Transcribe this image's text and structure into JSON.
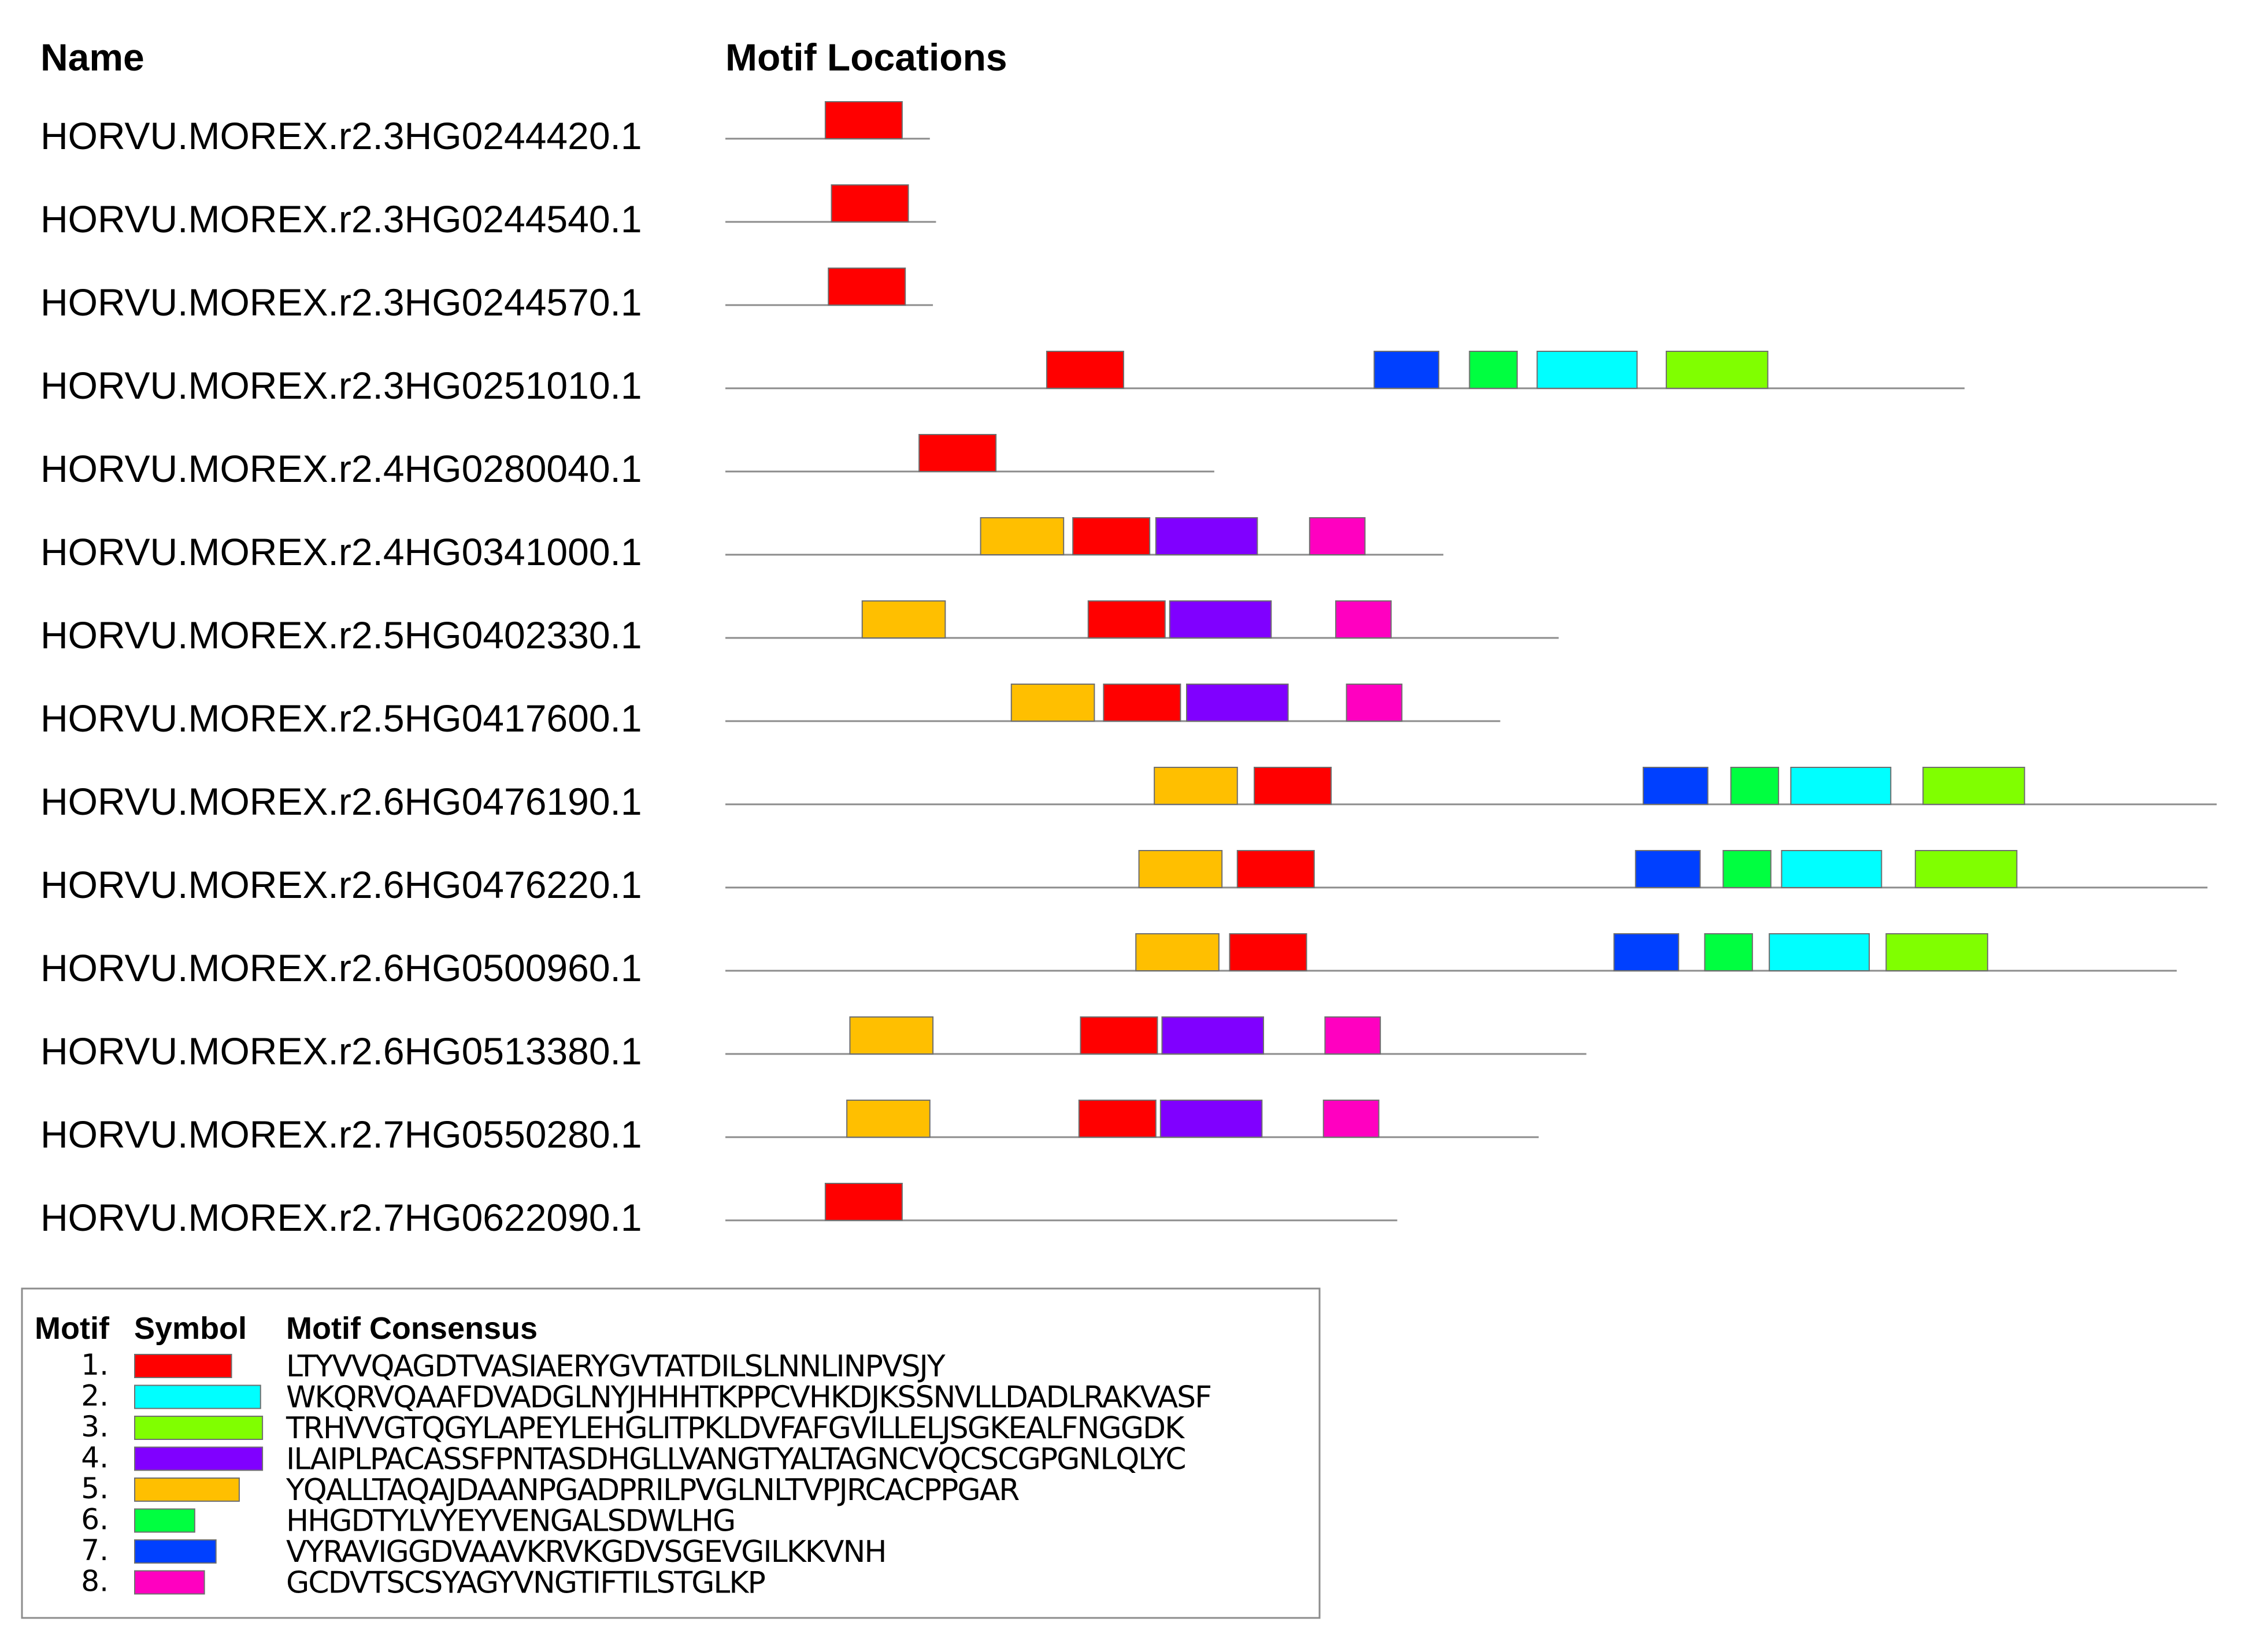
{
  "header": {
    "name_label": "Name",
    "locations_label": "Motif Locations"
  },
  "motifs": [
    {
      "id": 1,
      "number": "1.",
      "color": "#ff0000",
      "consensus": "LTYVVQAGDTVASIAERYGVTATDILSLNNLINPVSJY",
      "width": 50
    },
    {
      "id": 2,
      "number": "2.",
      "color": "#00ffff",
      "consensus": "WKQRVQAAFDVADGLNYJHHHTKPPCVHKDJKSSNVLLDADLRAKVASF",
      "width": 65
    },
    {
      "id": 3,
      "number": "3.",
      "color": "#80ff00",
      "consensus": "TRHVVGTQGYLAPEYLEHGLITPKLDVFAFGVILLELJSGKEALFNGGDK",
      "width": 66
    },
    {
      "id": 4,
      "number": "4.",
      "color": "#8000ff",
      "consensus": "ILAIPLPACASSFPNTASDHGLLVANGTYALTAGNCVQCSCGPGNLQLYC",
      "width": 66
    },
    {
      "id": 5,
      "number": "5.",
      "color": "#ffbf00",
      "consensus": "YQALLTAQAJDAANPGADPRILPVGLNLTVPJRCACPPGAR",
      "width": 54
    },
    {
      "id": 6,
      "number": "6.",
      "color": "#00ff40",
      "consensus": "HHGDTYLVYEYVENGALSDWLHG",
      "width": 31
    },
    {
      "id": 7,
      "number": "7.",
      "color": "#0040ff",
      "consensus": "VYRAVIGGDVAAVKRVKGDVSGEVGILKKVNH",
      "width": 42
    },
    {
      "id": 8,
      "number": "8.",
      "color": "#ff00c0",
      "consensus": "GCDVTSCSYAGYVNGTIFTILSTGLKP",
      "width": 36
    }
  ],
  "sequences": [
    {
      "name": "HORVU.MOREX.r2.3HG0244420.1",
      "length": 133,
      "hits": [
        {
          "motif": 1,
          "start": 65
        }
      ]
    },
    {
      "name": "HORVU.MOREX.r2.3HG0244540.1",
      "length": 137,
      "hits": [
        {
          "motif": 1,
          "start": 69
        }
      ]
    },
    {
      "name": "HORVU.MOREX.r2.3HG0244570.1",
      "length": 135,
      "hits": [
        {
          "motif": 1,
          "start": 67
        }
      ]
    },
    {
      "name": "HORVU.MOREX.r2.3HG0251010.1",
      "length": 806,
      "hits": [
        {
          "motif": 1,
          "start": 209
        },
        {
          "motif": 7,
          "start": 422
        },
        {
          "motif": 6,
          "start": 484
        },
        {
          "motif": 2,
          "start": 528
        },
        {
          "motif": 3,
          "start": 612
        }
      ]
    },
    {
      "name": "HORVU.MOREX.r2.4HG0280040.1",
      "length": 318,
      "hits": [
        {
          "motif": 1,
          "start": 126
        }
      ]
    },
    {
      "name": "HORVU.MOREX.r2.4HG0341000.1",
      "length": 467,
      "hits": [
        {
          "motif": 5,
          "start": 166
        },
        {
          "motif": 1,
          "start": 226
        },
        {
          "motif": 4,
          "start": 280
        },
        {
          "motif": 8,
          "start": 380
        }
      ]
    },
    {
      "name": "HORVU.MOREX.r2.5HG0402330.1",
      "length": 542,
      "hits": [
        {
          "motif": 5,
          "start": 89
        },
        {
          "motif": 1,
          "start": 236
        },
        {
          "motif": 4,
          "start": 289
        },
        {
          "motif": 8,
          "start": 397
        }
      ]
    },
    {
      "name": "HORVU.MOREX.r2.5HG0417600.1",
      "length": 504,
      "hits": [
        {
          "motif": 5,
          "start": 186
        },
        {
          "motif": 1,
          "start": 246
        },
        {
          "motif": 4,
          "start": 300
        },
        {
          "motif": 8,
          "start": 404
        }
      ]
    },
    {
      "name": "HORVU.MOREX.r2.6HG0476190.1",
      "length": 970,
      "hits": [
        {
          "motif": 5,
          "start": 279
        },
        {
          "motif": 1,
          "start": 344
        },
        {
          "motif": 7,
          "start": 597
        },
        {
          "motif": 6,
          "start": 654
        },
        {
          "motif": 2,
          "start": 693
        },
        {
          "motif": 3,
          "start": 779
        }
      ]
    },
    {
      "name": "HORVU.MOREX.r2.6HG0476220.1",
      "length": 964,
      "hits": [
        {
          "motif": 5,
          "start": 269
        },
        {
          "motif": 1,
          "start": 333
        },
        {
          "motif": 7,
          "start": 592
        },
        {
          "motif": 6,
          "start": 649
        },
        {
          "motif": 2,
          "start": 687
        },
        {
          "motif": 3,
          "start": 774
        }
      ]
    },
    {
      "name": "HORVU.MOREX.r2.6HG0500960.1",
      "length": 944,
      "hits": [
        {
          "motif": 5,
          "start": 267
        },
        {
          "motif": 1,
          "start": 328
        },
        {
          "motif": 7,
          "start": 578
        },
        {
          "motif": 6,
          "start": 637
        },
        {
          "motif": 2,
          "start": 679
        },
        {
          "motif": 3,
          "start": 755
        }
      ]
    },
    {
      "name": "HORVU.MOREX.r2.6HG0513380.1",
      "length": 560,
      "hits": [
        {
          "motif": 5,
          "start": 81
        },
        {
          "motif": 1,
          "start": 231
        },
        {
          "motif": 4,
          "start": 284
        },
        {
          "motif": 8,
          "start": 390
        }
      ]
    },
    {
      "name": "HORVU.MOREX.r2.7HG0550280.1",
      "length": 529,
      "hits": [
        {
          "motif": 5,
          "start": 79
        },
        {
          "motif": 1,
          "start": 230
        },
        {
          "motif": 4,
          "start": 283
        },
        {
          "motif": 8,
          "start": 389
        }
      ]
    },
    {
      "name": "HORVU.MOREX.r2.7HG0622090.1",
      "length": 437,
      "hits": [
        {
          "motif": 1,
          "start": 65
        }
      ]
    }
  ],
  "legend": {
    "motif_label": "Motif",
    "symbol_label": "Symbol",
    "consensus_label": "Motif Consensus"
  }
}
